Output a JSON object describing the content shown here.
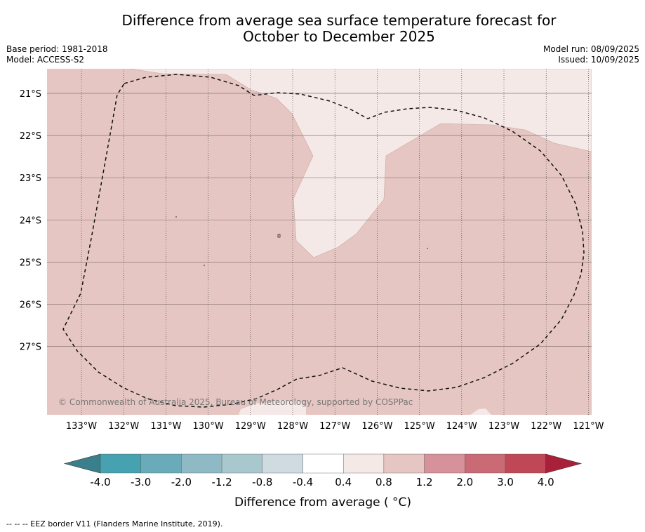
{
  "title_line1": "Difference from average sea surface temperature forecast for",
  "title_line2": "October to December 2025",
  "meta": {
    "base_period": "Base period: 1981-2018",
    "model": "Model: ACCESS-S2",
    "model_run": "Model run: 08/09/2025",
    "issued": "Issued: 10/09/2025"
  },
  "map": {
    "lon_labels": [
      "133°W",
      "132°W",
      "131°W",
      "130°W",
      "129°W",
      "128°W",
      "127°W",
      "126°W",
      "125°W",
      "124°W",
      "123°W",
      "122°W",
      "121°W"
    ],
    "lat_labels": [
      "21°S",
      "22°S",
      "23°S",
      "24°S",
      "25°S",
      "26°S",
      "27°S"
    ],
    "copyright": "© Commonwealth of Australia 2025, Bureau of Meteorology, supported by COSPPac",
    "colors": {
      "band_0_4_to_0_8": "#f5e9e8",
      "band_0_8_to_1_2": "#e6c6c2"
    }
  },
  "colorbar": {
    "ticks": [
      "-4.0",
      "-3.0",
      "-2.0",
      "-1.2",
      "-0.8",
      "-0.4",
      "0.4",
      "0.8",
      "1.2",
      "2.0",
      "3.0",
      "4.0"
    ],
    "colors": [
      "#3a7f8c",
      "#46a1b0",
      "#6aabb9",
      "#8fb9c4",
      "#a9c8cd",
      "#cfdbe0",
      "#ffffff",
      "#f5e9e8",
      "#e6c6c2",
      "#d6919a",
      "#c96a75",
      "#bf4756",
      "#a8203a"
    ],
    "label": "Difference from average ( °C)"
  },
  "footer": "--  --  -- EEZ border V11 (Flanders Marine Institute, 2019)."
}
